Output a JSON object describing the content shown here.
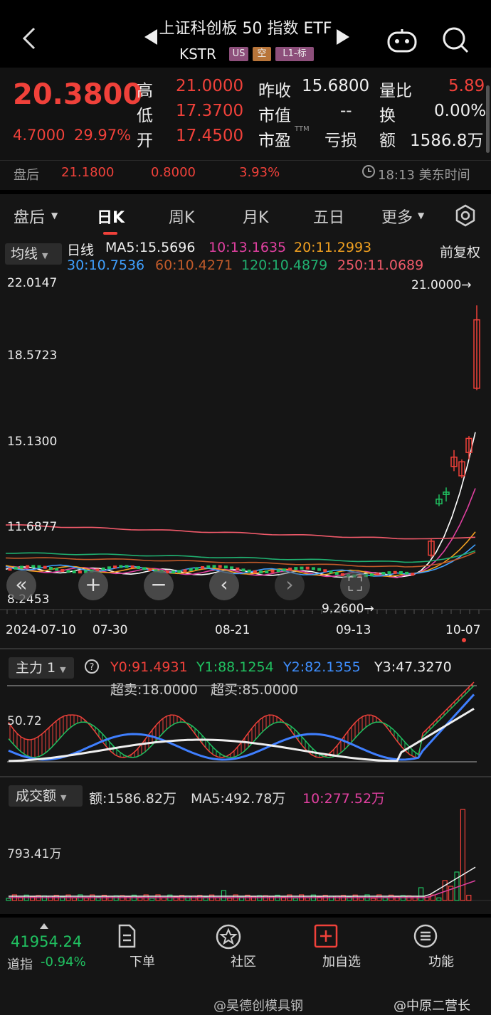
{
  "header": {
    "title": "上证科创板 50 指数 ETF",
    "code": "KSTR",
    "tags": [
      "US",
      "空",
      "L1-标"
    ]
  },
  "quote": {
    "price": "20.3800",
    "change": "4.7000",
    "change_pct": "29.97%",
    "high_label": "高",
    "high": "21.0000",
    "low_label": "低",
    "low": "17.3700",
    "open_label": "开",
    "open": "17.4500",
    "prev_close_label": "昨收",
    "prev_close": "15.6800",
    "mkt_cap_label": "市值",
    "mkt_cap": "-- ",
    "pe_label": "市盈",
    "pe_sup": "TTM",
    "pe": "亏损",
    "vol_ratio_label": "量比",
    "vol_ratio": "5.89",
    "turnover_label": "换",
    "turnover": "0.00%",
    "amount_label": "额",
    "amount": "1586.8万"
  },
  "after_hours": {
    "label": "盘后",
    "price": "21.1800",
    "change": "0.8000",
    "change_pct": "3.93%",
    "time": "18:13 美东时间"
  },
  "tabs": [
    "盘后",
    "日K",
    "周K",
    "月K",
    "五日",
    "更多"
  ],
  "active_tab": "日K",
  "main_chart": {
    "ma_selector": "均线",
    "series_label": "日线",
    "ma5": "MA5:15.5696",
    "ma10": "10:13.1635",
    "ma20": "20:11.2993",
    "ma30": "30:10.7536",
    "ma60": "60:10.4271",
    "ma120": "120:10.4879",
    "ma250": "250:11.0689",
    "adjust": "前复权",
    "y_ticks": [
      "22.0147",
      "18.5723",
      "15.1300",
      "11.6877",
      "8.2453"
    ],
    "max_label": "21.0000→",
    "min_label": "9.2600→",
    "x_ticks": [
      "2024-07-10",
      "07-30",
      "08-21",
      "09-13",
      "10-07"
    ],
    "colors": {
      "ma5": "#ffffff",
      "ma10": "#e040a0",
      "ma20": "#f0a020",
      "ma30": "#3fa0ff",
      "ma60": "#c05a2a",
      "ma120": "#20b070",
      "ma250": "#f05a6a"
    }
  },
  "chart_data": {
    "type": "line",
    "title": "",
    "x": [
      "2024-07-10",
      "07-30",
      "08-21",
      "09-13",
      "10-07"
    ],
    "ylim": [
      8.2453,
      22.0147
    ],
    "series": [
      {
        "name": "MA5",
        "values": [
          9.7,
          9.6,
          9.55,
          9.4,
          15.5696
        ]
      },
      {
        "name": "10",
        "values": [
          9.7,
          9.62,
          9.55,
          9.45,
          13.1635
        ]
      },
      {
        "name": "20",
        "values": [
          9.75,
          9.65,
          9.6,
          9.5,
          11.2993
        ]
      },
      {
        "name": "30",
        "values": [
          9.8,
          9.7,
          9.6,
          9.5,
          10.7536
        ]
      },
      {
        "name": "60",
        "values": [
          10.2,
          10.1,
          9.95,
          9.8,
          10.4271
        ]
      },
      {
        "name": "120",
        "values": [
          10.4,
          10.3,
          10.15,
          10.0,
          10.4879
        ]
      },
      {
        "name": "250",
        "values": [
          11.6,
          11.4,
          11.2,
          11.0,
          11.0689
        ]
      }
    ]
  },
  "indicator": {
    "selector": "主力 1",
    "y0": "Y0:91.4931",
    "y1": "Y1:88.1254",
    "y2": "Y2:82.1355",
    "y3": "Y3:47.3270",
    "oversold": "超卖:18.0000",
    "overbought": "超买:85.0000",
    "mid_tick": "50.72"
  },
  "volume": {
    "selector": "成交额",
    "amount": "额:1586.82万",
    "ma5": "MA5:492.78万",
    "ma10": "10:277.52万",
    "tick": "793.41万"
  },
  "bottom_nav": {
    "index_value": "41954.24",
    "index_name": "道指",
    "index_change": "-0.94%",
    "items": [
      "下单",
      "社区",
      "加自选",
      "功能"
    ]
  },
  "watermarks": [
    "@吴德创模具钢",
    "@中原二营长"
  ]
}
